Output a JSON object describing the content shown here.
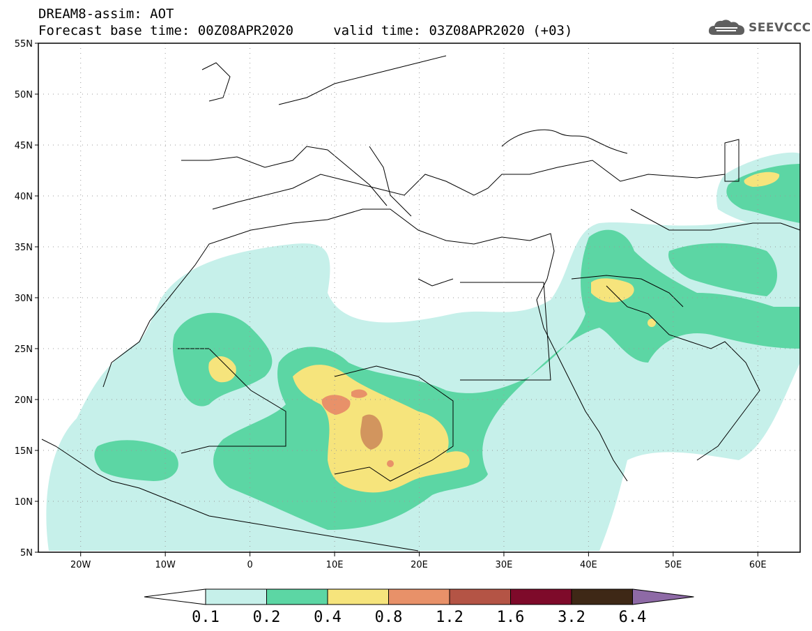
{
  "header": {
    "line1": "DREAM8-assim: AOT",
    "line2": "Forecast base time: 00Z08APR2020     valid time: 03Z08APR2020 (+03)",
    "logo_text": "SEEVCCC",
    "logo_icon": "cloud-icon"
  },
  "map": {
    "lon_range": [
      -25,
      65
    ],
    "lat_range": [
      5,
      55
    ],
    "lat_labels": [
      "55N",
      "50N",
      "45N",
      "40N",
      "35N",
      "30N",
      "25N",
      "20N",
      "15N",
      "10N",
      "5N"
    ],
    "lon_labels": [
      "20W",
      "10W",
      "0",
      "10E",
      "20E",
      "30E",
      "40E",
      "50E",
      "60E"
    ]
  },
  "colorbar": {
    "colors": [
      "#ffffff",
      "#c6f0ea",
      "#5cd6a4",
      "#f6e47c",
      "#e89169",
      "#b45445",
      "#7e0a2a",
      "#3e2816",
      "#8e6aa6"
    ],
    "labels": [
      "0.1",
      "0.2",
      "0.4",
      "0.8",
      "1.2",
      "1.6",
      "3.2",
      "6.4"
    ]
  }
}
